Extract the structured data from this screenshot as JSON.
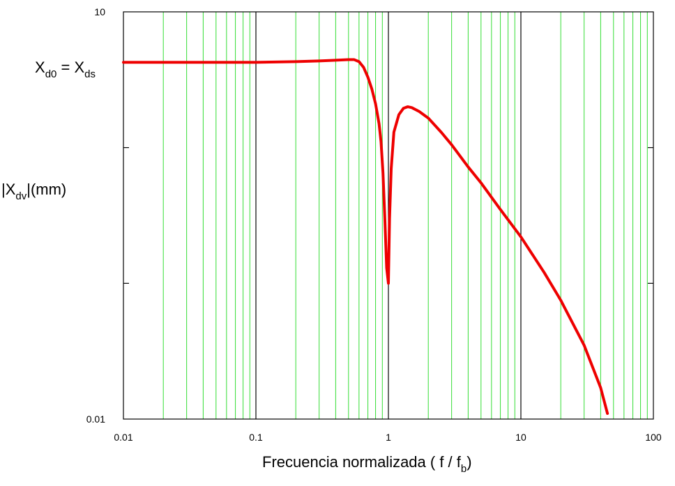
{
  "chart_data": {
    "type": "line",
    "x_scale": "log",
    "y_scale": "log",
    "xlim": [
      0.01,
      100
    ],
    "ylim": [
      0.01,
      10
    ],
    "x_ticks": [
      {
        "value": 0.01,
        "label": "0.01"
      },
      {
        "value": 0.1,
        "label": "0.1"
      },
      {
        "value": 1,
        "label": "1"
      },
      {
        "value": 10,
        "label": "10"
      },
      {
        "value": 100,
        "label": "100"
      }
    ],
    "y_ticks": [
      {
        "value": 10,
        "label": "10"
      },
      {
        "value": 0.01,
        "label": "0.01"
      }
    ],
    "grid": true,
    "grid_major_color": "#000000",
    "grid_minor_color": "#33dd33",
    "line_color": "#ee0000",
    "xlabel": "Frecuencia normalizada ( f / f",
    "xlabel_sub": "b",
    "xlabel_end": ")",
    "ylabel": {
      "pre": "|X",
      "sub": "dv",
      "post": "|(mm)"
    },
    "annotation": {
      "a": "X",
      "a_sub": "d0",
      "eq": " = ",
      "b": "X",
      "b_sub": "ds",
      "y_value": 4.25
    },
    "series": [
      {
        "x": [
          0.01,
          0.02,
          0.05,
          0.1,
          0.2,
          0.3,
          0.4,
          0.5,
          0.55,
          0.6,
          0.65,
          0.7,
          0.75,
          0.8,
          0.85,
          0.88,
          0.91,
          0.94,
          0.97,
          1.0,
          1.02,
          1.05,
          1.1,
          1.2,
          1.3,
          1.4,
          1.5,
          1.7,
          2.0,
          2.5,
          3,
          4,
          5,
          7,
          10,
          15,
          20,
          30,
          40,
          45
        ],
        "y": [
          4.25,
          4.25,
          4.25,
          4.25,
          4.3,
          4.35,
          4.4,
          4.45,
          4.45,
          4.3,
          3.9,
          3.3,
          2.7,
          2.1,
          1.5,
          1.1,
          0.65,
          0.3,
          0.13,
          0.1,
          0.3,
          0.7,
          1.3,
          1.75,
          1.95,
          2.0,
          1.97,
          1.85,
          1.65,
          1.3,
          1.05,
          0.72,
          0.55,
          0.35,
          0.22,
          0.12,
          0.075,
          0.035,
          0.017,
          0.011
        ]
      }
    ]
  }
}
